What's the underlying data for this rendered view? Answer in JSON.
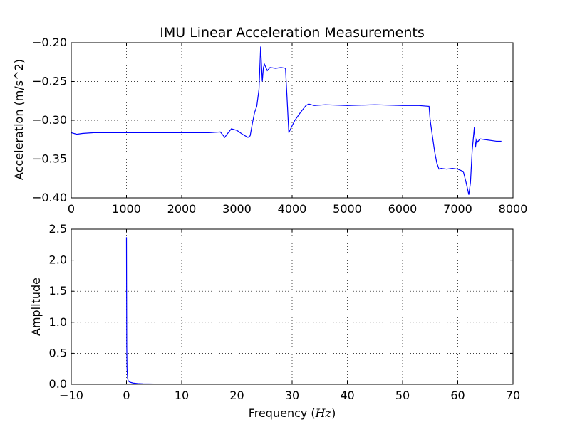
{
  "chart_data": [
    {
      "type": "line",
      "title": "IMU Linear Acceleration Measurements",
      "xlabel": "",
      "ylabel": "Acceleration (m/s^2)",
      "xlim": [
        0,
        8000
      ],
      "ylim": [
        -0.4,
        -0.2
      ],
      "xticks": [
        0,
        1000,
        2000,
        3000,
        4000,
        5000,
        6000,
        7000,
        8000
      ],
      "xtick_labels": [
        "0",
        "1000",
        "2000",
        "3000",
        "4000",
        "5000",
        "6000",
        "7000",
        "8000"
      ],
      "yticks": [
        -0.4,
        -0.35,
        -0.3,
        -0.25,
        -0.2
      ],
      "ytick_labels": [
        "−0.40",
        "−0.35",
        "−0.30",
        "−0.25",
        "−0.20"
      ],
      "grid": true,
      "color": "#0000ff",
      "series": [
        {
          "x": [
            0,
            100,
            200,
            400,
            700,
            1000,
            1500,
            2000,
            2500,
            2700,
            2780,
            2820,
            2900,
            3000,
            3100,
            3200,
            3240,
            3280,
            3320,
            3360,
            3400,
            3430,
            3460,
            3480,
            3500,
            3550,
            3600,
            3700,
            3800,
            3880,
            3900,
            3940,
            3980,
            4050,
            4150,
            4250,
            4300,
            4400,
            4600,
            5000,
            5500,
            6000,
            6300,
            6480,
            6500,
            6540,
            6580,
            6620,
            6660,
            6700,
            6800,
            6900,
            7000,
            7100,
            7150,
            7200,
            7230,
            7260,
            7300,
            7320,
            7340,
            7360,
            7400,
            7500,
            7600,
            7700,
            7790
          ],
          "y": [
            -0.316,
            -0.318,
            -0.317,
            -0.316,
            -0.316,
            -0.316,
            -0.316,
            -0.316,
            -0.316,
            -0.315,
            -0.322,
            -0.318,
            -0.311,
            -0.313,
            -0.318,
            -0.322,
            -0.32,
            -0.304,
            -0.29,
            -0.282,
            -0.26,
            -0.205,
            -0.25,
            -0.232,
            -0.228,
            -0.236,
            -0.232,
            -0.233,
            -0.232,
            -0.233,
            -0.26,
            -0.316,
            -0.31,
            -0.3,
            -0.29,
            -0.281,
            -0.279,
            -0.281,
            -0.28,
            -0.281,
            -0.28,
            -0.281,
            -0.281,
            -0.282,
            -0.3,
            -0.32,
            -0.34,
            -0.355,
            -0.363,
            -0.362,
            -0.363,
            -0.362,
            -0.363,
            -0.366,
            -0.38,
            -0.396,
            -0.38,
            -0.34,
            -0.309,
            -0.335,
            -0.325,
            -0.328,
            -0.324,
            -0.325,
            -0.326,
            -0.327,
            -0.327
          ]
        }
      ]
    },
    {
      "type": "line",
      "title": "",
      "xlabel": "Frequency (",
      "xlabel_math": "Hz",
      "xlabel_end": ")",
      "ylabel": "Amplitude",
      "xlim": [
        -10,
        70
      ],
      "ylim": [
        0.0,
        2.5
      ],
      "xticks": [
        -10,
        0,
        10,
        20,
        30,
        40,
        50,
        60,
        70
      ],
      "xtick_labels": [
        "−10",
        "0",
        "10",
        "20",
        "30",
        "40",
        "50",
        "60",
        "70"
      ],
      "yticks": [
        0.0,
        0.5,
        1.0,
        1.5,
        2.0,
        2.5
      ],
      "ytick_labels": [
        "0.0",
        "0.5",
        "1.0",
        "1.5",
        "2.0",
        "2.5"
      ],
      "grid": true,
      "color": "#0000ff",
      "series": [
        {
          "x": [
            0.0,
            0.02,
            0.05,
            0.1,
            0.2,
            0.3,
            0.5,
            0.8,
            1.2,
            2.0,
            3.0,
            5.0,
            10.0,
            20.0,
            40.0,
            67.0
          ],
          "y": [
            2.37,
            1.5,
            0.6,
            0.25,
            0.1,
            0.06,
            0.04,
            0.03,
            0.02,
            0.012,
            0.008,
            0.005,
            0.003,
            0.002,
            0.001,
            0.001
          ]
        }
      ]
    }
  ]
}
